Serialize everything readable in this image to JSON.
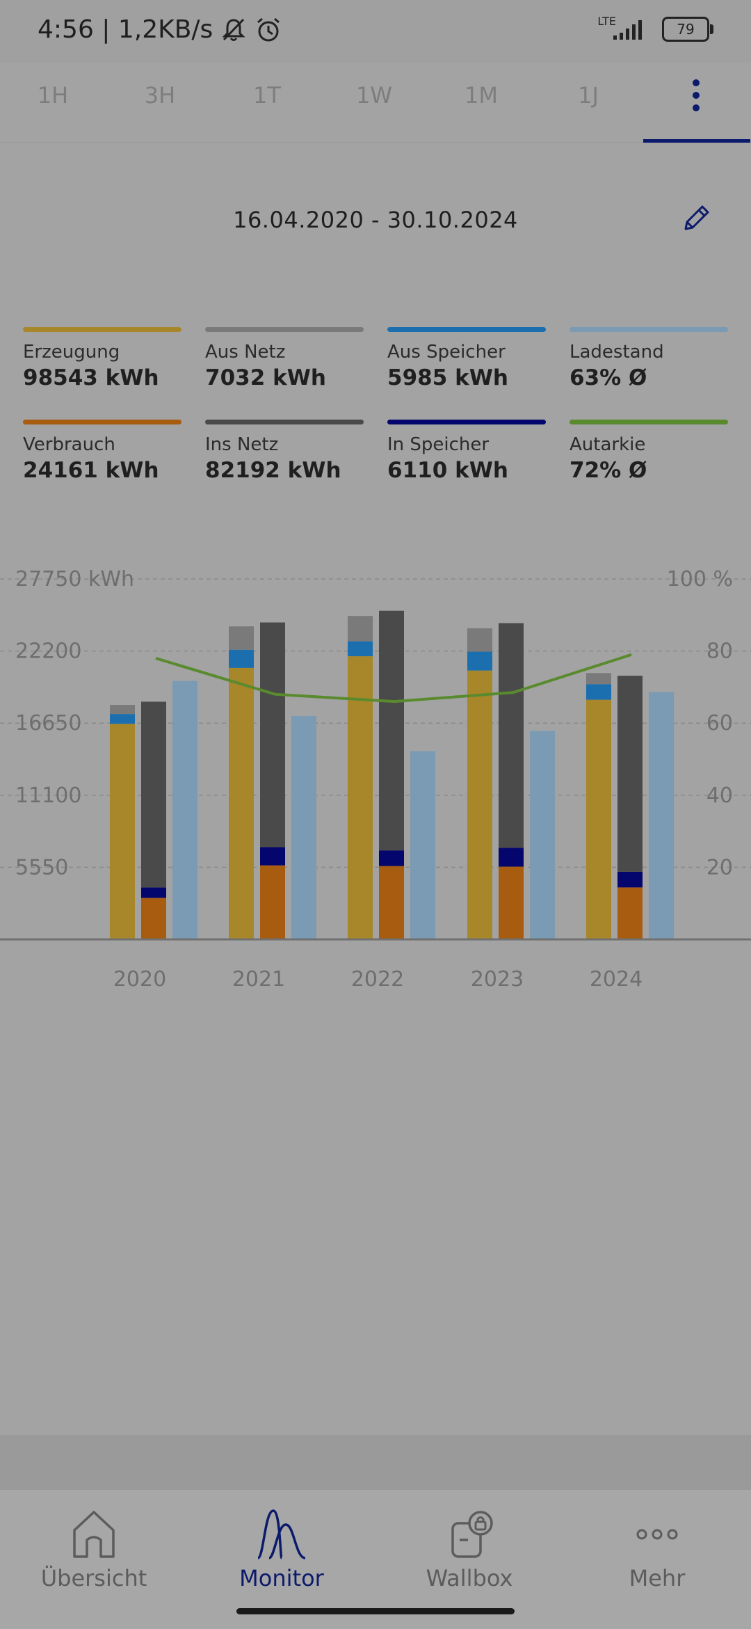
{
  "status": {
    "time_speed": "4:56 | 1,2KB/s",
    "network": "LTE",
    "battery": "79"
  },
  "tabs": [
    "1H",
    "3H",
    "1T",
    "1W",
    "1M",
    "1J"
  ],
  "date_range": "16.04.2020 - 30.10.2024",
  "legend": [
    {
      "label": "Erzeugung",
      "value": "98543 kWh",
      "color": "#a8862a"
    },
    {
      "label": "Aus Netz",
      "value": "7032 kWh",
      "color": "#7a7a7a"
    },
    {
      "label": "Aus Speicher",
      "value": "5985 kWh",
      "color": "#1c6fae"
    },
    {
      "label": "Ladestand",
      "value": "63% Ø",
      "color": "#7a9bb3"
    },
    {
      "label": "Verbrauch",
      "value": "24161 kWh",
      "color": "#a85c10"
    },
    {
      "label": "Ins Netz",
      "value": "82192 kWh",
      "color": "#4a4a4a"
    },
    {
      "label": "In Speicher",
      "value": "6110 kWh",
      "color": "#04066e"
    },
    {
      "label": "Autarkie",
      "value": "72% Ø",
      "color": "#5a8a2e"
    }
  ],
  "chart_data": {
    "type": "bar",
    "categories": [
      "2020",
      "2021",
      "2022",
      "2023",
      "2024"
    ],
    "left_axis": {
      "ticks": [
        "27750 kWh",
        "22200",
        "16650",
        "11100",
        "5550"
      ],
      "min": 0,
      "max": 27750
    },
    "right_axis": {
      "ticks": [
        "100 %",
        "80",
        "60",
        "40",
        "20"
      ],
      "min": 0,
      "max": 100
    },
    "series": [
      {
        "name": "Erzeugung",
        "values": [
          16600,
          20900,
          21800,
          20700,
          18450
        ]
      },
      {
        "name": "Aus Speicher",
        "values": [
          750,
          1400,
          1150,
          1450,
          1200
        ]
      },
      {
        "name": "Aus Netz",
        "values": [
          700,
          1800,
          1950,
          1800,
          850
        ]
      },
      {
        "name": "Verbrauch",
        "values": [
          3200,
          5700,
          5650,
          5600,
          4000
        ]
      },
      {
        "name": "In Speicher",
        "values": [
          800,
          1400,
          1200,
          1450,
          1200
        ]
      },
      {
        "name": "Ins Netz",
        "values": [
          14300,
          17300,
          18450,
          17300,
          15100
        ]
      },
      {
        "name": "Ladestand",
        "values": [
          19900,
          17200,
          14500,
          16050,
          19050
        ]
      },
      {
        "name": "Autarkie",
        "values": [
          78,
          68,
          66,
          68.5,
          79
        ]
      }
    ]
  },
  "nav": [
    {
      "label": "Übersicht"
    },
    {
      "label": "Monitor"
    },
    {
      "label": "Wallbox"
    },
    {
      "label": "Mehr"
    }
  ]
}
